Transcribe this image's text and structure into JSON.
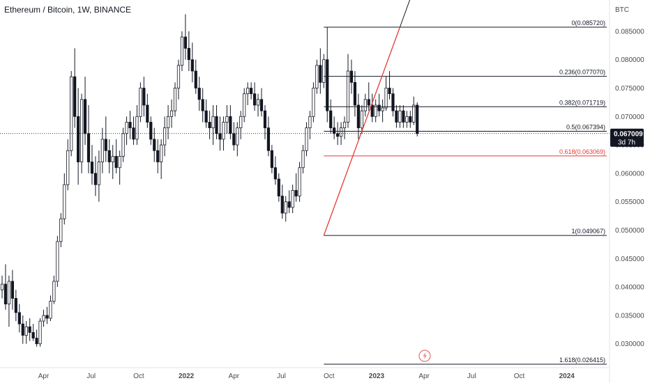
{
  "chart_data": {
    "type": "candlestick",
    "title": "Ethereum / Bitcoin, 1W, BINANCE",
    "y_unit": "BTC",
    "ylim": [
      0.0258,
      0.0905
    ],
    "x_ticks": [
      {
        "label": "Apr",
        "bold": false
      },
      {
        "label": "Jul",
        "bold": false
      },
      {
        "label": "Oct",
        "bold": false
      },
      {
        "label": "2022",
        "bold": true
      },
      {
        "label": "Apr",
        "bold": false
      },
      {
        "label": "Jul",
        "bold": false
      },
      {
        "label": "Oct",
        "bold": false
      },
      {
        "label": "2023",
        "bold": true
      },
      {
        "label": "Apr",
        "bold": false
      },
      {
        "label": "Jul",
        "bold": false
      },
      {
        "label": "Oct",
        "bold": false
      },
      {
        "label": "2024",
        "bold": true
      }
    ],
    "y_ticks": [
      "0.085000",
      "0.080000",
      "0.075000",
      "0.070000",
      "0.065000",
      "0.060000",
      "0.055000",
      "0.050000",
      "0.045000",
      "0.040000",
      "0.035000",
      "0.030000"
    ],
    "y_tick_values": [
      0.085,
      0.08,
      0.075,
      0.07,
      0.065,
      0.06,
      0.055,
      0.05,
      0.045,
      0.04,
      0.035,
      0.03
    ],
    "current_price": {
      "value": "0.067009",
      "raw": 0.067009,
      "countdown": "3d 7h"
    },
    "fib_levels": [
      {
        "label": "0(0.085720)",
        "price": 0.08572,
        "color": "#131722"
      },
      {
        "label": "0.236(0.077070)",
        "price": 0.07707,
        "color": "#131722"
      },
      {
        "label": "0.382(0.071719)",
        "price": 0.071719,
        "color": "#131722"
      },
      {
        "label": "0.5(0.067394)",
        "price": 0.067394,
        "color": "#131722"
      },
      {
        "label": "0.618(0.063069)",
        "price": 0.063069,
        "color": "#e53935"
      },
      {
        "label": "1(0.049067)",
        "price": 0.049067,
        "color": "#131722"
      },
      {
        "label": "1.618(0.026415)",
        "price": 0.026415,
        "color": "#131722"
      }
    ],
    "candles": [
      [
        0.0395,
        0.042,
        0.038,
        0.0405
      ],
      [
        0.0405,
        0.044,
        0.036,
        0.037
      ],
      [
        0.037,
        0.042,
        0.033,
        0.041
      ],
      [
        0.041,
        0.043,
        0.036,
        0.038
      ],
      [
        0.038,
        0.0395,
        0.034,
        0.0355
      ],
      [
        0.0355,
        0.037,
        0.032,
        0.0335
      ],
      [
        0.0335,
        0.035,
        0.03,
        0.0315
      ],
      [
        0.0315,
        0.034,
        0.03,
        0.033
      ],
      [
        0.033,
        0.0345,
        0.0305,
        0.032
      ],
      [
        0.032,
        0.0335,
        0.0305,
        0.031
      ],
      [
        0.031,
        0.0325,
        0.0295,
        0.03
      ],
      [
        0.03,
        0.0345,
        0.0295,
        0.034
      ],
      [
        0.034,
        0.036,
        0.033,
        0.035
      ],
      [
        0.035,
        0.0365,
        0.0335,
        0.0345
      ],
      [
        0.0345,
        0.0385,
        0.034,
        0.0375
      ],
      [
        0.0375,
        0.042,
        0.037,
        0.041
      ],
      [
        0.041,
        0.049,
        0.04,
        0.048
      ],
      [
        0.048,
        0.053,
        0.047,
        0.052
      ],
      [
        0.052,
        0.06,
        0.051,
        0.058
      ],
      [
        0.058,
        0.066,
        0.057,
        0.064
      ],
      [
        0.064,
        0.078,
        0.063,
        0.077
      ],
      [
        0.077,
        0.082,
        0.068,
        0.07
      ],
      [
        0.07,
        0.075,
        0.058,
        0.062
      ],
      [
        0.062,
        0.074,
        0.06,
        0.073
      ],
      [
        0.073,
        0.077,
        0.065,
        0.067
      ],
      [
        0.067,
        0.072,
        0.06,
        0.062
      ],
      [
        0.062,
        0.065,
        0.058,
        0.06
      ],
      [
        0.06,
        0.063,
        0.056,
        0.058
      ],
      [
        0.058,
        0.064,
        0.055,
        0.062
      ],
      [
        0.062,
        0.068,
        0.06,
        0.066
      ],
      [
        0.066,
        0.07,
        0.062,
        0.064
      ],
      [
        0.064,
        0.066,
        0.06,
        0.062
      ],
      [
        0.062,
        0.065,
        0.059,
        0.063
      ],
      [
        0.063,
        0.066,
        0.06,
        0.061
      ],
      [
        0.061,
        0.064,
        0.058,
        0.063
      ],
      [
        0.063,
        0.068,
        0.062,
        0.067
      ],
      [
        0.067,
        0.07,
        0.065,
        0.069
      ],
      [
        0.069,
        0.071,
        0.066,
        0.068
      ],
      [
        0.068,
        0.07,
        0.065,
        0.066
      ],
      [
        0.066,
        0.072,
        0.065,
        0.07
      ],
      [
        0.07,
        0.076,
        0.069,
        0.075
      ],
      [
        0.075,
        0.077,
        0.07,
        0.072
      ],
      [
        0.072,
        0.074,
        0.068,
        0.069
      ],
      [
        0.069,
        0.07,
        0.065,
        0.066
      ],
      [
        0.066,
        0.068,
        0.062,
        0.064
      ],
      [
        0.064,
        0.066,
        0.06,
        0.062
      ],
      [
        0.062,
        0.066,
        0.059,
        0.065
      ],
      [
        0.065,
        0.07,
        0.063,
        0.068
      ],
      [
        0.068,
        0.072,
        0.066,
        0.07
      ],
      [
        0.07,
        0.073,
        0.068,
        0.071
      ],
      [
        0.071,
        0.076,
        0.07,
        0.075
      ],
      [
        0.075,
        0.08,
        0.073,
        0.079
      ],
      [
        0.079,
        0.085,
        0.078,
        0.084
      ],
      [
        0.084,
        0.088,
        0.08,
        0.082
      ],
      [
        0.082,
        0.085,
        0.078,
        0.08
      ],
      [
        0.08,
        0.083,
        0.076,
        0.078
      ],
      [
        0.078,
        0.08,
        0.074,
        0.075
      ],
      [
        0.075,
        0.077,
        0.071,
        0.073
      ],
      [
        0.073,
        0.075,
        0.069,
        0.071
      ],
      [
        0.071,
        0.073,
        0.068,
        0.069
      ],
      [
        0.069,
        0.071,
        0.066,
        0.068
      ],
      [
        0.068,
        0.072,
        0.065,
        0.07
      ],
      [
        0.07,
        0.072,
        0.066,
        0.067
      ],
      [
        0.067,
        0.07,
        0.064,
        0.066
      ],
      [
        0.066,
        0.07,
        0.064,
        0.069
      ],
      [
        0.069,
        0.072,
        0.067,
        0.07
      ],
      [
        0.07,
        0.072,
        0.066,
        0.067
      ],
      [
        0.067,
        0.069,
        0.064,
        0.065
      ],
      [
        0.065,
        0.069,
        0.063,
        0.068
      ],
      [
        0.068,
        0.071,
        0.066,
        0.07
      ],
      [
        0.07,
        0.075,
        0.069,
        0.074
      ],
      [
        0.074,
        0.076,
        0.072,
        0.075
      ],
      [
        0.075,
        0.076,
        0.073,
        0.074
      ],
      [
        0.074,
        0.076,
        0.071,
        0.072
      ],
      [
        0.072,
        0.074,
        0.07,
        0.073
      ],
      [
        0.073,
        0.075,
        0.07,
        0.071
      ],
      [
        0.071,
        0.072,
        0.066,
        0.068
      ],
      [
        0.068,
        0.07,
        0.063,
        0.064
      ],
      [
        0.064,
        0.065,
        0.06,
        0.061
      ],
      [
        0.061,
        0.063,
        0.058,
        0.059
      ],
      [
        0.059,
        0.06,
        0.055,
        0.056
      ],
      [
        0.056,
        0.058,
        0.052,
        0.053
      ],
      [
        0.053,
        0.056,
        0.0515,
        0.055
      ],
      [
        0.055,
        0.057,
        0.053,
        0.054
      ],
      [
        0.054,
        0.058,
        0.053,
        0.057
      ],
      [
        0.057,
        0.06,
        0.055,
        0.056
      ],
      [
        0.056,
        0.062,
        0.055,
        0.061
      ],
      [
        0.061,
        0.065,
        0.06,
        0.064
      ],
      [
        0.064,
        0.069,
        0.063,
        0.068
      ],
      [
        0.068,
        0.071,
        0.066,
        0.07
      ],
      [
        0.07,
        0.076,
        0.069,
        0.075
      ],
      [
        0.075,
        0.08,
        0.074,
        0.079
      ],
      [
        0.079,
        0.082,
        0.074,
        0.076
      ],
      [
        0.076,
        0.081,
        0.075,
        0.08
      ],
      [
        0.08,
        0.0857,
        0.069,
        0.071
      ],
      [
        0.071,
        0.073,
        0.067,
        0.068
      ],
      [
        0.068,
        0.07,
        0.066,
        0.067
      ],
      [
        0.067,
        0.069,
        0.065,
        0.0665
      ],
      [
        0.0665,
        0.069,
        0.065,
        0.068
      ],
      [
        0.068,
        0.07,
        0.066,
        0.069
      ],
      [
        0.069,
        0.081,
        0.068,
        0.078
      ],
      [
        0.078,
        0.08,
        0.074,
        0.076
      ],
      [
        0.076,
        0.078,
        0.07,
        0.072
      ],
      [
        0.072,
        0.074,
        0.066,
        0.068
      ],
      [
        0.068,
        0.072,
        0.067,
        0.071
      ],
      [
        0.071,
        0.074,
        0.07,
        0.073
      ],
      [
        0.073,
        0.076,
        0.071,
        0.072
      ],
      [
        0.072,
        0.074,
        0.069,
        0.07
      ],
      [
        0.07,
        0.073,
        0.069,
        0.072
      ],
      [
        0.072,
        0.074,
        0.07,
        0.071
      ],
      [
        0.071,
        0.073,
        0.069,
        0.0715
      ],
      [
        0.0715,
        0.077,
        0.071,
        0.075
      ],
      [
        0.075,
        0.078,
        0.073,
        0.074
      ],
      [
        0.074,
        0.075,
        0.07,
        0.071
      ],
      [
        0.071,
        0.072,
        0.068,
        0.069
      ],
      [
        0.069,
        0.072,
        0.068,
        0.071
      ],
      [
        0.071,
        0.072,
        0.068,
        0.069
      ],
      [
        0.069,
        0.071,
        0.068,
        0.07
      ],
      [
        0.07,
        0.071,
        0.068,
        0.069
      ],
      [
        0.069,
        0.0735,
        0.0685,
        0.072
      ],
      [
        0.072,
        0.0725,
        0.0665,
        0.067
      ]
    ],
    "drawing_points": {
      "fib_low": {
        "index": 93,
        "price": 0.049067
      },
      "fib_high": {
        "index": 115,
        "price": 0.08572
      }
    }
  },
  "ui": {
    "watermark_icon": "lightning-icon"
  }
}
